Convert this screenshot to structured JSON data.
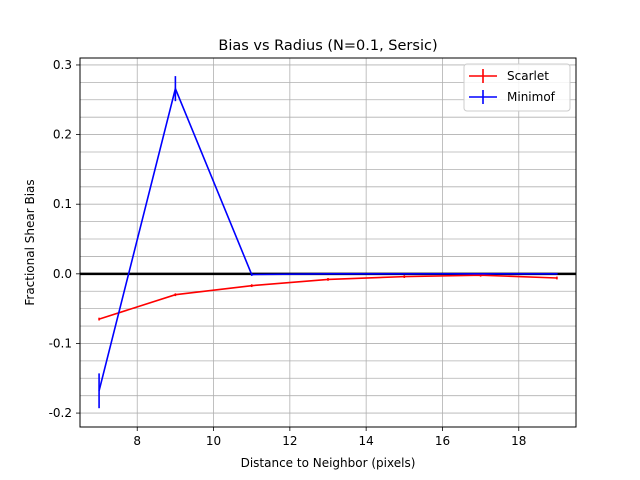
{
  "chart_data": {
    "type": "line",
    "title": "Bias vs Radius (N=0.1, Sersic)",
    "xlabel": "Distance to Neighbor (pixels)",
    "ylabel": "Fractional Shear Bias",
    "xlim": [
      6.5,
      19.5
    ],
    "ylim": [
      -0.22,
      0.31
    ],
    "xticks": [
      8,
      10,
      12,
      14,
      16,
      18
    ],
    "yticks": [
      0.3,
      0.2,
      0.1,
      0.0,
      -0.1,
      -0.2
    ],
    "ytick_labels": [
      "0.3",
      "0.2",
      "0.1",
      "0.0",
      "-0.1",
      "-0.2"
    ],
    "xgrid": [
      8,
      10,
      12,
      14,
      16,
      18
    ],
    "ygrid": [
      0.3,
      0.275,
      0.25,
      0.225,
      0.2,
      0.175,
      0.15,
      0.125,
      0.1,
      0.075,
      0.05,
      0.025,
      0.0,
      -0.025,
      -0.05,
      -0.075,
      -0.1,
      -0.125,
      -0.15,
      -0.175,
      -0.2
    ],
    "grid": true,
    "reference_line": {
      "y": 0.0,
      "color": "#000000"
    },
    "legend_position": "top-right",
    "series": [
      {
        "name": "Scarlet",
        "color": "#ff0000",
        "x": [
          7,
          9,
          11,
          13,
          15,
          17,
          19
        ],
        "y": [
          -0.065,
          -0.03,
          -0.017,
          -0.008,
          -0.004,
          -0.002,
          -0.006
        ],
        "yerr": [
          0.002,
          0.002,
          0.002,
          0.002,
          0.002,
          0.002,
          0.002
        ]
      },
      {
        "name": "Minimof",
        "color": "#0000ff",
        "x": [
          7,
          9,
          11,
          13,
          15,
          17,
          19
        ],
        "y": [
          -0.168,
          0.266,
          -0.001,
          0.0,
          0.0,
          0.0,
          0.0
        ],
        "yerr": [
          0.025,
          0.018,
          0.002,
          0.001,
          0.001,
          0.001,
          0.001
        ]
      }
    ]
  }
}
